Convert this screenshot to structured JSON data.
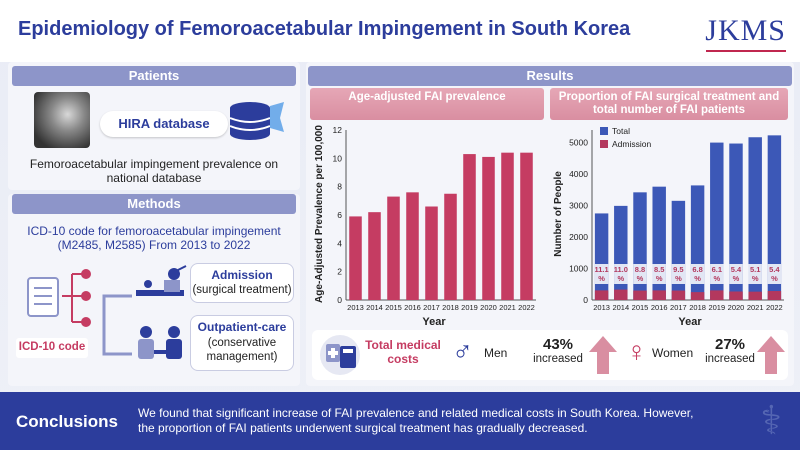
{
  "header": {
    "title": "Epidemiology of Femoroacetabular Impingement in South Korea",
    "logo": "JKMS"
  },
  "patients": {
    "heading": "Patients",
    "db_label": "HIRA database",
    "description": "Femoroacetabular impingement prevalence on national database"
  },
  "methods": {
    "heading": "Methods",
    "icd_text": "ICD-10 code for femoroacetabular impingement (M2485, M2585) From 2013 to 2022",
    "icd_label": "ICD-10 code",
    "admission_title": "Admission",
    "admission_sub": "(surgical treatment)",
    "outpatient_title": "Outpatient-care",
    "outpatient_sub": "(conservative management)"
  },
  "results": {
    "heading": "Results",
    "chart1_heading": "Age-adjusted FAI prevalence",
    "chart2_heading": "Proportion of FAI surgical treatment and total number of FAI patients",
    "costs_label": "Total medical costs",
    "men_label": "Men",
    "men_pct": "43%",
    "men_inc": "increased",
    "women_label": "Women",
    "women_pct": "27%",
    "women_inc": "increased"
  },
  "conclusions": {
    "label": "Conclusions",
    "text": "We found that significant increase of FAI prevalence and related medical costs in South Korea. However, the proportion of FAI patients underwent surgical treatment has gradually decreased."
  },
  "colors": {
    "brand": "#2c3d9c",
    "bar": "#c53c62",
    "total": "#3c58b7",
    "admission": "#b3385e"
  },
  "chart_data": [
    {
      "type": "bar",
      "categories": [
        "2013",
        "2014",
        "2015",
        "2016",
        "2017",
        "2018",
        "2019",
        "2020",
        "2021",
        "2022"
      ],
      "values": [
        5.9,
        6.2,
        7.3,
        7.6,
        6.6,
        7.5,
        10.3,
        10.1,
        10.4,
        10.4
      ],
      "xlabel": "Year",
      "ylabel": "Age-Adjusted Prevalence per 100,000",
      "ylim": [
        0,
        12
      ],
      "yticks": [
        0,
        2,
        4,
        6,
        8,
        10,
        12
      ]
    },
    {
      "type": "bar",
      "categories": [
        "2013",
        "2014",
        "2015",
        "2016",
        "2017",
        "2018",
        "2019",
        "2020",
        "2021",
        "2022"
      ],
      "series": [
        {
          "name": "Total",
          "values": [
            2750,
            2990,
            3420,
            3600,
            3150,
            3640,
            5000,
            4970,
            5170,
            5230
          ]
        },
        {
          "name": "Admission",
          "values": [
            305,
            330,
            300,
            305,
            300,
            250,
            305,
            270,
            265,
            285
          ]
        }
      ],
      "labels": [
        "11.1 %",
        "11.0 %",
        "8.8 %",
        "8.5 %",
        "9.5 %",
        "6.8 %",
        "6.1 %",
        "5.4 %",
        "5.1 %",
        "5.4 %"
      ],
      "xlabel": "Year",
      "ylabel": "Number of People",
      "ylim": [
        0,
        5400
      ],
      "yticks": [
        0,
        1000,
        2000,
        3000,
        4000,
        5000
      ]
    }
  ]
}
